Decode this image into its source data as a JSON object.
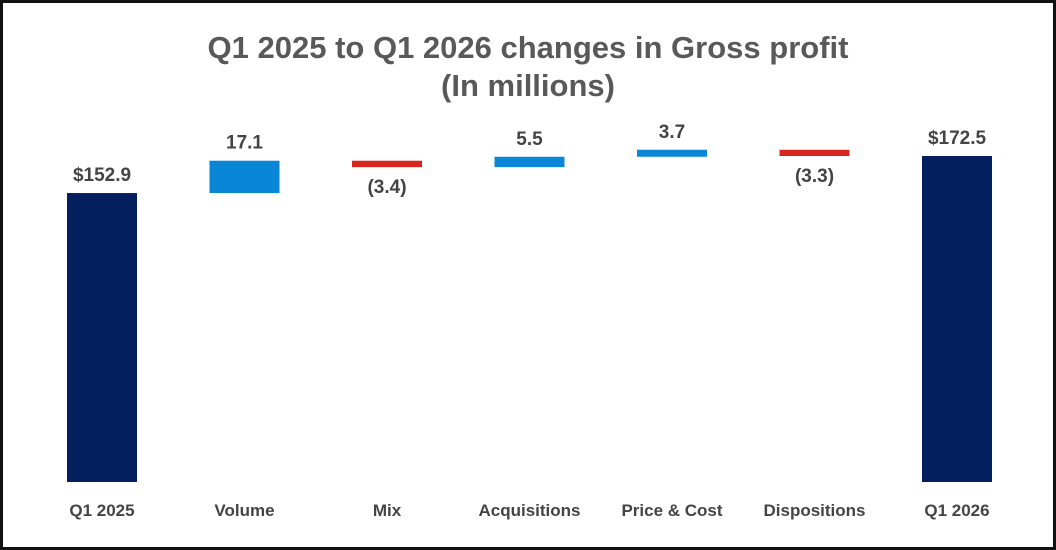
{
  "chart_data": {
    "type": "bar",
    "title_line1": "Q1 2025 to Q1 2026 changes in Gross profit",
    "title_line2": "(In millions)",
    "categories": [
      "Q1 2025",
      "Volume",
      "Mix",
      "Acquisitions",
      "Price & Cost",
      "Dispositions",
      "Q1 2026"
    ],
    "values": [
      152.9,
      17.1,
      -3.4,
      5.5,
      3.7,
      -3.3,
      172.5
    ],
    "kinds": [
      "total",
      "delta",
      "delta",
      "delta",
      "delta",
      "delta",
      "total"
    ],
    "labels": [
      "$152.9",
      "17.1",
      "(3.4)",
      "5.5",
      "3.7",
      "(3.3)",
      "$172.5"
    ],
    "colors": {
      "total": "#041f5e",
      "increase": "#0a86d6",
      "decrease": "#d7261e"
    },
    "grid": false,
    "legend": "none"
  }
}
